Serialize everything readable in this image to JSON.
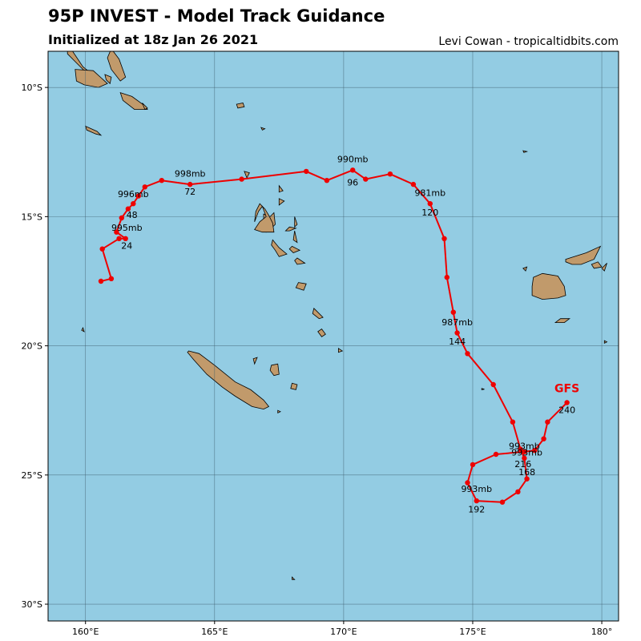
{
  "header": {
    "title": "95P INVEST - Model Track Guidance",
    "subtitle": "Initialized at 18z Jan 26 2021",
    "credit": "Levi Cowan - tropicaltidbits.com"
  },
  "colors": {
    "ocean": "#93cce3",
    "land": "#c19a6b",
    "track": "#ee0000",
    "grid": "#3c5a6a"
  },
  "chart_data": {
    "type": "map-track",
    "x_axis": {
      "range": [
        158.55,
        180.65
      ],
      "ticks": [
        160,
        165,
        170,
        175,
        180
      ],
      "tick_labels": [
        "160°E",
        "165°E",
        "170°E",
        "175°E",
        "180°"
      ]
    },
    "y_axis": {
      "range": [
        -8.6,
        -30.65
      ],
      "ticks": [
        -10,
        -15,
        -20,
        -25,
        -30
      ],
      "tick_labels": [
        "10°S",
        "15°S",
        "20°S",
        "25°S",
        "30°S"
      ]
    },
    "model_label": {
      "text": "GFS",
      "lon": 178.65,
      "lat": -21.8
    },
    "track": [
      [
        160.6,
        -17.5
      ],
      [
        161.0,
        -17.4
      ],
      [
        160.65,
        -16.25
      ],
      [
        161.3,
        -15.85
      ],
      [
        161.55,
        -15.85
      ],
      [
        161.2,
        -15.6
      ],
      [
        161.4,
        -15.05
      ],
      [
        161.65,
        -14.7
      ],
      [
        161.85,
        -14.5
      ],
      [
        162.05,
        -14.2
      ],
      [
        162.3,
        -13.85
      ],
      [
        162.95,
        -13.6
      ],
      [
        164.05,
        -13.75
      ],
      [
        166.05,
        -13.55
      ],
      [
        168.55,
        -13.25
      ],
      [
        169.35,
        -13.6
      ],
      [
        170.35,
        -13.2
      ],
      [
        170.85,
        -13.55
      ],
      [
        171.8,
        -13.35
      ],
      [
        172.7,
        -13.75
      ],
      [
        173.35,
        -14.5
      ],
      [
        173.9,
        -15.85
      ],
      [
        174.0,
        -17.35
      ],
      [
        174.25,
        -18.7
      ],
      [
        174.4,
        -19.5
      ],
      [
        174.8,
        -20.3
      ],
      [
        175.8,
        -21.5
      ],
      [
        176.55,
        -22.95
      ],
      [
        176.85,
        -24.0
      ],
      [
        177.0,
        -24.35
      ],
      [
        177.1,
        -25.15
      ],
      [
        176.75,
        -25.65
      ],
      [
        176.15,
        -26.05
      ],
      [
        175.15,
        -26.0
      ],
      [
        174.8,
        -25.3
      ],
      [
        175.0,
        -24.6
      ],
      [
        175.9,
        -24.2
      ],
      [
        177.0,
        -24.1
      ],
      [
        177.4,
        -24.05
      ],
      [
        177.75,
        -23.6
      ],
      [
        177.9,
        -22.95
      ],
      [
        178.65,
        -22.2
      ]
    ],
    "annotations": [
      {
        "text": "998mb",
        "lon": 164.05,
        "lat": -13.45
      },
      {
        "text": "72",
        "lon": 164.05,
        "lat": -14.15
      },
      {
        "text": "996mb",
        "lon": 161.85,
        "lat": -14.25
      },
      {
        "text": "48",
        "lon": 161.8,
        "lat": -15.05
      },
      {
        "text": "995mb",
        "lon": 161.6,
        "lat": -15.55
      },
      {
        "text": "24",
        "lon": 161.6,
        "lat": -16.25
      },
      {
        "text": "990mb",
        "lon": 170.35,
        "lat": -12.9
      },
      {
        "text": "96",
        "lon": 170.35,
        "lat": -13.8
      },
      {
        "text": "981mb",
        "lon": 173.35,
        "lat": -14.2
      },
      {
        "text": "120",
        "lon": 173.35,
        "lat": -14.95
      },
      {
        "text": "987mb",
        "lon": 174.4,
        "lat": -19.2
      },
      {
        "text": "144",
        "lon": 174.4,
        "lat": -19.95
      },
      {
        "text": "993mb",
        "lon": 177.0,
        "lat": -24.0
      },
      {
        "text": "993mb",
        "lon": 177.1,
        "lat": -24.25
      },
      {
        "text": "216",
        "lon": 176.95,
        "lat": -24.7
      },
      {
        "text": "168",
        "lon": 177.1,
        "lat": -25.0
      },
      {
        "text": "993mb",
        "lon": 175.15,
        "lat": -25.65
      },
      {
        "text": "192",
        "lon": 175.15,
        "lat": -26.45
      },
      {
        "text": "240",
        "lon": 178.65,
        "lat": -22.6
      }
    ]
  },
  "land": [
    {
      "name": "Solomon Islands",
      "polys": [
        [
          [
            159.3,
            -8.4
          ],
          [
            159.5,
            -8.6
          ],
          [
            159.9,
            -9.2
          ],
          [
            160.4,
            -9.6
          ],
          [
            160.2,
            -9.6
          ],
          [
            159.6,
            -9.0
          ],
          [
            159.3,
            -8.7
          ]
        ],
        [
          [
            160.75,
            -9.5
          ],
          [
            161.0,
            -9.6
          ],
          [
            160.95,
            -9.85
          ],
          [
            160.8,
            -9.7
          ]
        ],
        [
          [
            161.0,
            -8.5
          ],
          [
            161.3,
            -8.9
          ],
          [
            161.55,
            -9.6
          ],
          [
            161.35,
            -9.75
          ],
          [
            161.0,
            -9.3
          ],
          [
            160.85,
            -8.85
          ]
        ],
        [
          [
            159.6,
            -9.3
          ],
          [
            160.3,
            -9.35
          ],
          [
            160.85,
            -9.85
          ],
          [
            160.5,
            -10.0
          ],
          [
            159.95,
            -9.9
          ],
          [
            159.65,
            -9.75
          ]
        ],
        [
          [
            161.35,
            -10.2
          ],
          [
            161.8,
            -10.35
          ],
          [
            162.35,
            -10.75
          ],
          [
            162.4,
            -10.85
          ],
          [
            161.9,
            -10.85
          ],
          [
            161.45,
            -10.5
          ]
        ],
        [
          [
            162.2,
            -10.6
          ],
          [
            162.4,
            -10.8
          ],
          [
            162.3,
            -10.85
          ]
        ],
        [
          [
            160.0,
            -11.5
          ],
          [
            160.45,
            -11.7
          ],
          [
            160.6,
            -11.85
          ],
          [
            160.4,
            -11.8
          ],
          [
            160.05,
            -11.65
          ]
        ],
        [
          [
            158.5,
            -8.05
          ],
          [
            158.75,
            -8.1
          ],
          [
            158.7,
            -8.2
          ],
          [
            158.45,
            -8.15
          ]
        ]
      ]
    },
    {
      "name": "Santa Cruz",
      "polys": [
        [
          [
            165.85,
            -10.65
          ],
          [
            166.1,
            -10.6
          ],
          [
            166.15,
            -10.75
          ],
          [
            165.9,
            -10.8
          ]
        ],
        [
          [
            166.8,
            -11.55
          ],
          [
            166.95,
            -11.6
          ],
          [
            166.85,
            -11.65
          ]
        ],
        [
          [
            176.95,
            -12.45
          ],
          [
            177.1,
            -12.48
          ],
          [
            176.98,
            -12.52
          ]
        ]
      ]
    },
    {
      "name": "Vanuatu",
      "polys": [
        [
          [
            167.15,
            -15.0
          ],
          [
            167.3,
            -14.85
          ],
          [
            167.35,
            -15.3
          ],
          [
            167.2,
            -15.45
          ],
          [
            167.0,
            -15.6
          ],
          [
            166.9,
            -15.15
          ],
          [
            166.9,
            -14.9
          ]
        ],
        [
          [
            166.7,
            -14.8
          ],
          [
            166.85,
            -14.6
          ],
          [
            167.0,
            -15.0
          ],
          [
            166.75,
            -15.2
          ],
          [
            166.55,
            -15.5
          ],
          [
            166.85,
            -15.6
          ],
          [
            167.1,
            -15.6
          ],
          [
            167.3,
            -15.6
          ],
          [
            167.25,
            -15.25
          ],
          [
            167.1,
            -14.95
          ],
          [
            166.95,
            -14.7
          ],
          [
            166.75,
            -14.5
          ],
          [
            166.6,
            -14.8
          ],
          [
            166.55,
            -15.2
          ]
        ],
        [
          [
            168.1,
            -15.0
          ],
          [
            168.2,
            -15.3
          ],
          [
            168.1,
            -15.4
          ]
        ],
        [
          [
            167.9,
            -15.4
          ],
          [
            168.15,
            -15.45
          ],
          [
            167.9,
            -15.55
          ],
          [
            167.75,
            -15.55
          ]
        ],
        [
          [
            168.1,
            -15.55
          ],
          [
            168.2,
            -16.0
          ],
          [
            168.05,
            -15.9
          ]
        ],
        [
          [
            167.25,
            -15.9
          ],
          [
            167.5,
            -16.2
          ],
          [
            167.8,
            -16.45
          ],
          [
            167.5,
            -16.55
          ],
          [
            167.35,
            -16.3
          ],
          [
            167.2,
            -16.1
          ]
        ],
        [
          [
            168.0,
            -16.15
          ],
          [
            168.3,
            -16.3
          ],
          [
            168.05,
            -16.4
          ],
          [
            167.9,
            -16.25
          ]
        ],
        [
          [
            168.2,
            -16.6
          ],
          [
            168.5,
            -16.8
          ],
          [
            168.2,
            -16.85
          ],
          [
            168.1,
            -16.7
          ]
        ],
        [
          [
            168.25,
            -17.55
          ],
          [
            168.55,
            -17.6
          ],
          [
            168.45,
            -17.85
          ],
          [
            168.15,
            -17.75
          ]
        ],
        [
          [
            168.85,
            -18.55
          ],
          [
            169.2,
            -18.9
          ],
          [
            169.05,
            -18.95
          ],
          [
            168.8,
            -18.75
          ]
        ],
        [
          [
            169.15,
            -19.35
          ],
          [
            169.3,
            -19.55
          ],
          [
            169.15,
            -19.65
          ],
          [
            169.0,
            -19.45
          ]
        ],
        [
          [
            169.8,
            -20.1
          ],
          [
            169.95,
            -20.2
          ],
          [
            169.8,
            -20.25
          ]
        ],
        [
          [
            166.15,
            -13.25
          ],
          [
            166.35,
            -13.3
          ],
          [
            166.25,
            -13.5
          ]
        ],
        [
          [
            167.5,
            -13.8
          ],
          [
            167.65,
            -14.0
          ],
          [
            167.5,
            -14.05
          ]
        ],
        [
          [
            167.5,
            -14.3
          ],
          [
            167.7,
            -14.4
          ],
          [
            167.5,
            -14.55
          ]
        ]
      ]
    },
    {
      "name": "New Caledonia",
      "polys": [
        [
          [
            164.0,
            -20.2
          ],
          [
            164.4,
            -20.3
          ],
          [
            165.0,
            -20.75
          ],
          [
            165.8,
            -21.4
          ],
          [
            166.4,
            -21.7
          ],
          [
            166.9,
            -22.1
          ],
          [
            167.1,
            -22.35
          ],
          [
            166.9,
            -22.45
          ],
          [
            166.45,
            -22.35
          ],
          [
            165.8,
            -21.95
          ],
          [
            165.3,
            -21.6
          ],
          [
            164.7,
            -21.1
          ],
          [
            164.2,
            -20.55
          ],
          [
            163.95,
            -20.25
          ]
        ],
        [
          [
            167.2,
            -20.75
          ],
          [
            167.45,
            -20.7
          ],
          [
            167.5,
            -21.1
          ],
          [
            167.3,
            -21.15
          ],
          [
            167.15,
            -20.95
          ]
        ],
        [
          [
            166.5,
            -20.5
          ],
          [
            166.65,
            -20.45
          ],
          [
            166.55,
            -20.7
          ]
        ],
        [
          [
            168.0,
            -21.45
          ],
          [
            168.2,
            -21.5
          ],
          [
            168.15,
            -21.7
          ],
          [
            167.95,
            -21.65
          ]
        ],
        [
          [
            167.45,
            -22.5
          ],
          [
            167.55,
            -22.55
          ],
          [
            167.45,
            -22.6
          ]
        ],
        [
          [
            168.0,
            -28.95
          ],
          [
            168.1,
            -29.05
          ],
          [
            168.0,
            -29.05
          ]
        ],
        [
          [
            159.9,
            -19.3
          ],
          [
            159.95,
            -19.45
          ],
          [
            159.85,
            -19.4
          ]
        ],
        [
          [
            175.35,
            -21.65
          ],
          [
            175.45,
            -21.68
          ],
          [
            175.35,
            -21.7
          ]
        ]
      ]
    },
    {
      "name": "Fiji",
      "polys": [
        [
          [
            177.35,
            -17.35
          ],
          [
            177.7,
            -17.2
          ],
          [
            178.3,
            -17.3
          ],
          [
            178.55,
            -17.7
          ],
          [
            178.6,
            -18.05
          ],
          [
            178.3,
            -18.15
          ],
          [
            177.7,
            -18.2
          ],
          [
            177.3,
            -18.05
          ],
          [
            177.3,
            -17.7
          ]
        ],
        [
          [
            178.6,
            -16.65
          ],
          [
            179.4,
            -16.4
          ],
          [
            179.95,
            -16.15
          ],
          [
            179.7,
            -16.65
          ],
          [
            179.2,
            -16.85
          ],
          [
            178.85,
            -16.85
          ],
          [
            178.6,
            -16.75
          ]
        ],
        [
          [
            179.6,
            -16.85
          ],
          [
            179.85,
            -16.75
          ],
          [
            180.0,
            -16.95
          ],
          [
            179.7,
            -17.0
          ]
        ],
        [
          [
            178.4,
            -18.95
          ],
          [
            178.75,
            -18.95
          ],
          [
            178.55,
            -19.1
          ],
          [
            178.2,
            -19.1
          ]
        ],
        [
          [
            176.95,
            -17.0
          ],
          [
            177.1,
            -16.95
          ],
          [
            177.05,
            -17.1
          ]
        ],
        [
          [
            180.0,
            -17.0
          ],
          [
            180.2,
            -16.8
          ],
          [
            180.1,
            -17.1
          ]
        ],
        [
          [
            180.1,
            -19.8
          ],
          [
            180.2,
            -19.85
          ],
          [
            180.1,
            -19.9
          ]
        ]
      ]
    }
  ]
}
